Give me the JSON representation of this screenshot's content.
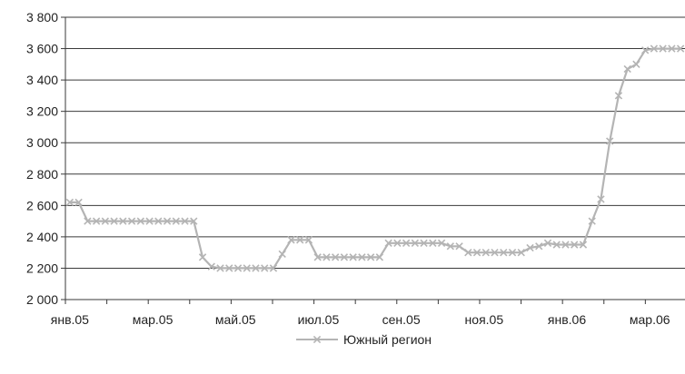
{
  "chart_data": {
    "type": "line",
    "title": "",
    "xlabel": "",
    "ylabel": "",
    "ylim": [
      2000,
      3800
    ],
    "y_ticks": [
      2000,
      2200,
      2400,
      2600,
      2800,
      3000,
      3200,
      3400,
      3600,
      3800
    ],
    "y_tick_labels": [
      "2 000",
      "2 200",
      "2 400",
      "2 600",
      "2 800",
      "3 000",
      "3 200",
      "3 400",
      "3 600",
      "3 800"
    ],
    "x_tick_labels": [
      "янв.05",
      "мар.05",
      "май.05",
      "июл.05",
      "сен.05",
      "ноя.05",
      "янв.06",
      "мар.06"
    ],
    "grid": "horizontal",
    "legend_position": "bottom",
    "series": [
      {
        "name": "Южный регион",
        "color": "#b4b4b4",
        "marker": "x",
        "values": [
          2620,
          2620,
          2500,
          2500,
          2500,
          2500,
          2500,
          2500,
          2500,
          2500,
          2500,
          2500,
          2500,
          2500,
          2500,
          2270,
          2210,
          2200,
          2200,
          2200,
          2200,
          2200,
          2200,
          2200,
          2290,
          2380,
          2380,
          2380,
          2270,
          2270,
          2270,
          2270,
          2270,
          2270,
          2270,
          2270,
          2360,
          2360,
          2360,
          2360,
          2360,
          2360,
          2360,
          2340,
          2340,
          2300,
          2300,
          2300,
          2300,
          2300,
          2300,
          2300,
          2330,
          2340,
          2360,
          2350,
          2350,
          2350,
          2350,
          2500,
          2640,
          3010,
          3300,
          3470,
          3500,
          3590,
          3600,
          3600,
          3600,
          3600
        ]
      }
    ]
  }
}
